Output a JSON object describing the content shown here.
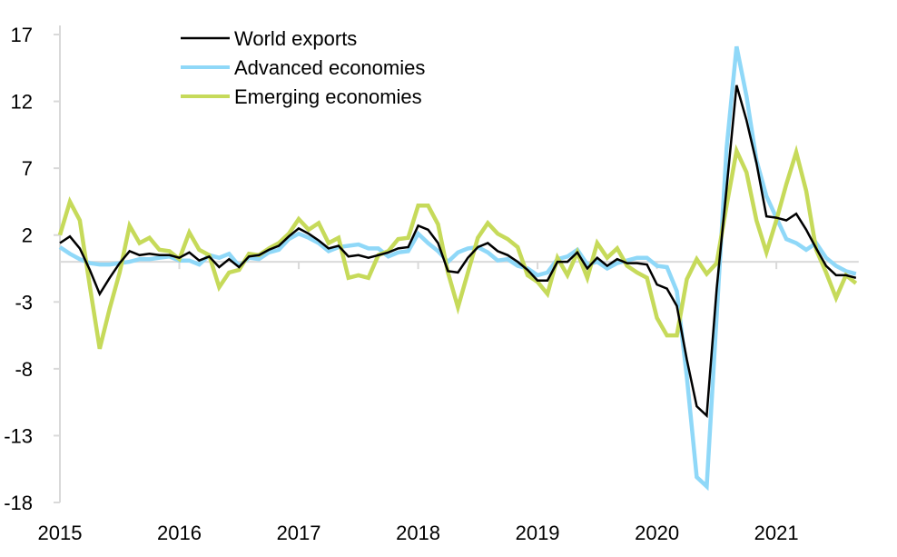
{
  "chart_data": {
    "type": "line",
    "title": "",
    "xlabel": "",
    "ylabel": "",
    "ylim": [
      -18,
      17
    ],
    "y_ticks": [
      17,
      12,
      7,
      2,
      -3,
      -8,
      -13,
      -18
    ],
    "x_tick_labels": [
      "2015",
      "2016",
      "2017",
      "2018",
      "2019",
      "2020",
      "2021"
    ],
    "x_start": "2015-01",
    "x_frequency": "monthly",
    "x_end": "2021-09",
    "grid": false,
    "zero_line": true,
    "legend_position": "top-left",
    "series": [
      {
        "name": "World exports",
        "color": "#000000",
        "values": [
          1.4,
          1.9,
          1.0,
          -0.6,
          -2.4,
          -1.2,
          -0.1,
          0.8,
          0.5,
          0.6,
          0.5,
          0.5,
          0.3,
          0.7,
          0.1,
          0.4,
          -0.4,
          0.2,
          -0.4,
          0.4,
          0.5,
          0.9,
          1.2,
          1.9,
          2.5,
          2.1,
          1.6,
          1.0,
          1.2,
          0.4,
          0.5,
          0.3,
          0.5,
          0.7,
          1.0,
          1.1,
          2.7,
          2.4,
          1.4,
          -0.7,
          -0.8,
          0.3,
          1.1,
          1.4,
          0.8,
          0.5,
          0.0,
          -0.6,
          -1.4,
          -1.4,
          0.0,
          0.0,
          0.7,
          -0.5,
          0.3,
          -0.3,
          0.2,
          -0.1,
          -0.1,
          -0.2,
          -1.7,
          -2.0,
          -3.3,
          -7.3,
          -10.8,
          -11.5,
          -2.0,
          5.5,
          13.2,
          10.6,
          7.4,
          3.4,
          3.3,
          3.1,
          3.6,
          2.4,
          1.0,
          -0.3,
          -1.0,
          -1.0,
          -1.2
        ]
      },
      {
        "name": "Advanced economies",
        "color": "#8fd8f8",
        "values": [
          1.1,
          0.6,
          0.2,
          -0.1,
          -0.2,
          -0.2,
          -0.1,
          0.0,
          0.2,
          0.2,
          0.3,
          0.4,
          0.1,
          0.1,
          -0.2,
          0.5,
          0.3,
          0.6,
          -0.3,
          0.3,
          0.2,
          0.7,
          0.9,
          1.7,
          2.1,
          1.8,
          1.4,
          0.8,
          1.1,
          1.2,
          1.3,
          1.0,
          1.0,
          0.4,
          0.7,
          0.8,
          2.1,
          1.4,
          0.8,
          0.0,
          0.7,
          1.0,
          1.1,
          0.7,
          0.1,
          0.2,
          -0.3,
          -0.5,
          -1.0,
          -0.8,
          0.2,
          0.4,
          0.9,
          -0.2,
          0.0,
          -0.5,
          -0.1,
          0.1,
          0.3,
          0.3,
          -0.3,
          -0.4,
          -2.2,
          -8.6,
          -16.1,
          -16.8,
          -4.0,
          8.5,
          16.1,
          12.4,
          7.6,
          4.9,
          3.3,
          1.7,
          1.4,
          0.9,
          1.4,
          0.3,
          -0.3,
          -0.7,
          -0.9
        ]
      },
      {
        "name": "Emerging economies",
        "color": "#c6da5a",
        "values": [
          2.0,
          4.5,
          3.1,
          -1.8,
          -6.5,
          -3.5,
          -0.8,
          2.7,
          1.4,
          1.8,
          0.9,
          0.8,
          0.2,
          2.2,
          0.9,
          0.5,
          -1.9,
          -0.8,
          -0.6,
          0.6,
          0.5,
          1.0,
          1.4,
          2.1,
          3.2,
          2.4,
          2.9,
          1.4,
          1.8,
          -1.2,
          -1.0,
          -1.2,
          0.5,
          0.8,
          1.7,
          1.8,
          4.2,
          4.2,
          2.8,
          -0.8,
          -3.4,
          -0.8,
          1.8,
          2.9,
          2.1,
          1.7,
          1.1,
          -1.0,
          -1.5,
          -2.4,
          0.3,
          -1.0,
          0.7,
          -1.2,
          1.4,
          0.3,
          1.0,
          -0.3,
          -0.8,
          -1.2,
          -4.2,
          -5.5,
          -5.5,
          -1.3,
          0.2,
          -0.9,
          -0.1,
          4.2,
          8.3,
          6.7,
          3.1,
          0.7,
          3.1,
          5.8,
          8.2,
          5.3,
          0.9,
          -0.8,
          -2.7,
          -1.0,
          -1.6
        ]
      }
    ]
  }
}
